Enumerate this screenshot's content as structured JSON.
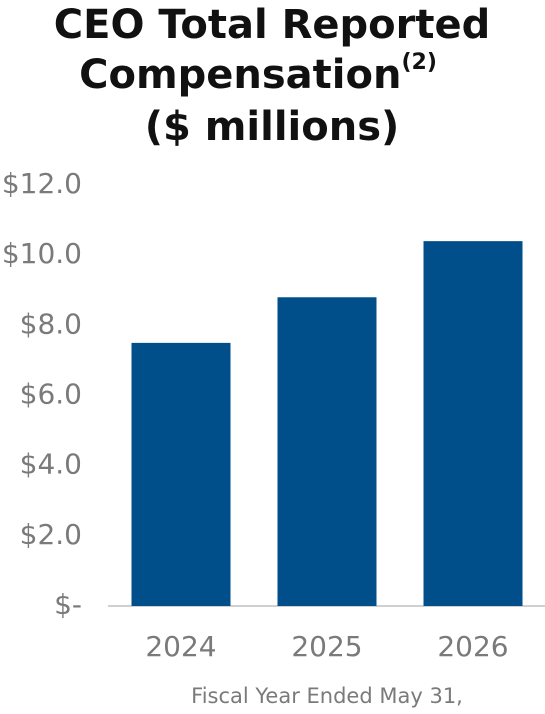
{
  "chart_data": {
    "type": "bar",
    "title": [
      "CEO Total Reported",
      "Compensation"
    ],
    "title_note": "(2)",
    "subtitle": "($ millions)",
    "x_label": "Fiscal Year Ended May 31,",
    "categories": [
      "2024",
      "2025",
      "2026"
    ],
    "values": [
      7.5,
      8.8,
      10.4
    ],
    "color": "#004f8b",
    "ylim": [
      0,
      12
    ],
    "yticks": [
      {
        "value": 0,
        "label": "$-"
      },
      {
        "value": 2,
        "label": "$2.0"
      },
      {
        "value": 4,
        "label": "$4.0"
      },
      {
        "value": 6,
        "label": "$6.0"
      },
      {
        "value": 8,
        "label": "$8.0"
      },
      {
        "value": 10,
        "label": "$10.0"
      },
      {
        "value": 12,
        "label": "$12.0"
      }
    ],
    "grid": false
  }
}
